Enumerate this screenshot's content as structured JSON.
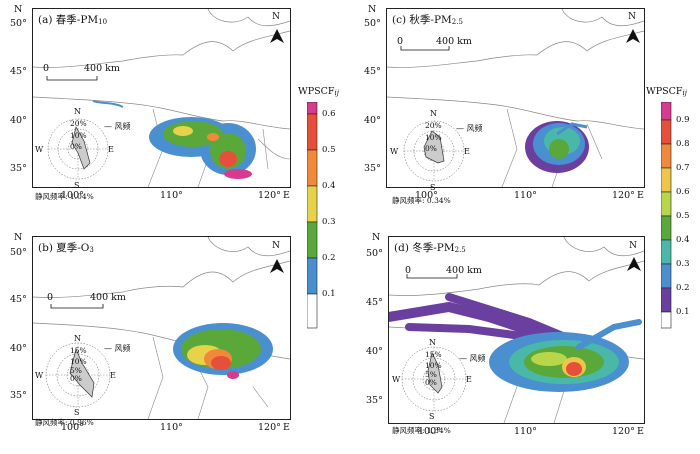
{
  "panels": [
    {
      "id": "a",
      "title_main": "(a) 春季-PM",
      "title_sub": "10",
      "x_ticks": [
        "100°",
        "110°",
        "120°"
      ],
      "x_unit": "E",
      "y_ticks": [
        "50°",
        "45°",
        "40°",
        "35°"
      ],
      "y_unit": "N",
      "north": "N",
      "scale": {
        "left": "0",
        "right": "400 km"
      },
      "rose": {
        "rings": [
          "20%",
          "10%",
          "0%"
        ],
        "dirs": {
          "n": "N",
          "e": "E",
          "s": "S",
          "w": "W"
        },
        "legend": "风频",
        "calm": "静风频率: 1.04%"
      }
    },
    {
      "id": "b",
      "title_main": "(b) 夏季-O",
      "title_sub": "3",
      "x_ticks": [
        "100°",
        "110°",
        "120°"
      ],
      "x_unit": "E",
      "y_ticks": [
        "50°",
        "45°",
        "40°",
        "35°"
      ],
      "y_unit": "N",
      "north": "N",
      "scale": {
        "left": "0",
        "right": "400 km"
      },
      "rose": {
        "rings": [
          "15%",
          "10%",
          "5%",
          "0%"
        ],
        "dirs": {
          "n": "N",
          "e": "E",
          "s": "S",
          "w": "W"
        },
        "legend": "风频",
        "calm": "静风频率: 0.96%"
      }
    },
    {
      "id": "c",
      "title_main": "(c) 秋季-PM",
      "title_sub": "2.5",
      "x_ticks": [
        "100°",
        "110°",
        "120°"
      ],
      "x_unit": "E",
      "y_ticks": [
        "50°",
        "45°",
        "40°",
        "35°"
      ],
      "y_unit": "N",
      "north": "N",
      "scale": {
        "left": "0",
        "right": "400 km"
      },
      "rose": {
        "rings": [
          "20%",
          "10%",
          "0%"
        ],
        "dirs": {
          "n": "N",
          "e": "E",
          "s": "S",
          "w": "W"
        },
        "legend": "风频",
        "calm": "静风频率: 0.34%"
      }
    },
    {
      "id": "d",
      "title_main": "(d) 冬季-PM",
      "title_sub": "2.5",
      "x_ticks": [
        "100°",
        "110°",
        "120°"
      ],
      "x_unit": "E",
      "y_ticks": [
        "50°",
        "45°",
        "40°",
        "35°"
      ],
      "y_unit": "N",
      "north": "N",
      "scale": {
        "left": "0",
        "right": "400 km"
      },
      "rose": {
        "rings": [
          "15%",
          "10%",
          "5%",
          "0%"
        ],
        "dirs": {
          "n": "N",
          "e": "E",
          "s": "S",
          "w": "W"
        },
        "legend": "风频",
        "calm": "静风频率: 1.34%"
      }
    }
  ],
  "legends": [
    {
      "title_main": "WPSCF",
      "title_sub": "ij",
      "ticks": [
        "0.6",
        "0.5",
        "0.4",
        "0.3",
        "0.2",
        "0.1"
      ],
      "colors": [
        "#d63b8f",
        "#e6503a",
        "#f08a3a",
        "#e8d24a",
        "#5aa83a",
        "#4a8fd0",
        "#ffffff"
      ]
    },
    {
      "title_main": "WPSCF",
      "title_sub": "ij",
      "ticks": [
        "0.9",
        "0.8",
        "0.7",
        "0.6",
        "0.5",
        "0.4",
        "0.3",
        "0.2",
        "0.1"
      ],
      "colors": [
        "#d63b8f",
        "#e6503a",
        "#f08a3a",
        "#f0c64a",
        "#b8d64a",
        "#5aa83a",
        "#4ab8a8",
        "#4a8fd0",
        "#6a3fa0",
        "#ffffff"
      ]
    }
  ],
  "colors": {
    "low": "#4a8fd0",
    "mid": "#5aa83a",
    "high": "#e6503a",
    "top": "#d63b8f",
    "purple": "#6a3fa0",
    "yellow": "#e8d24a",
    "orange": "#f08a3a",
    "boundary": "#888888"
  }
}
